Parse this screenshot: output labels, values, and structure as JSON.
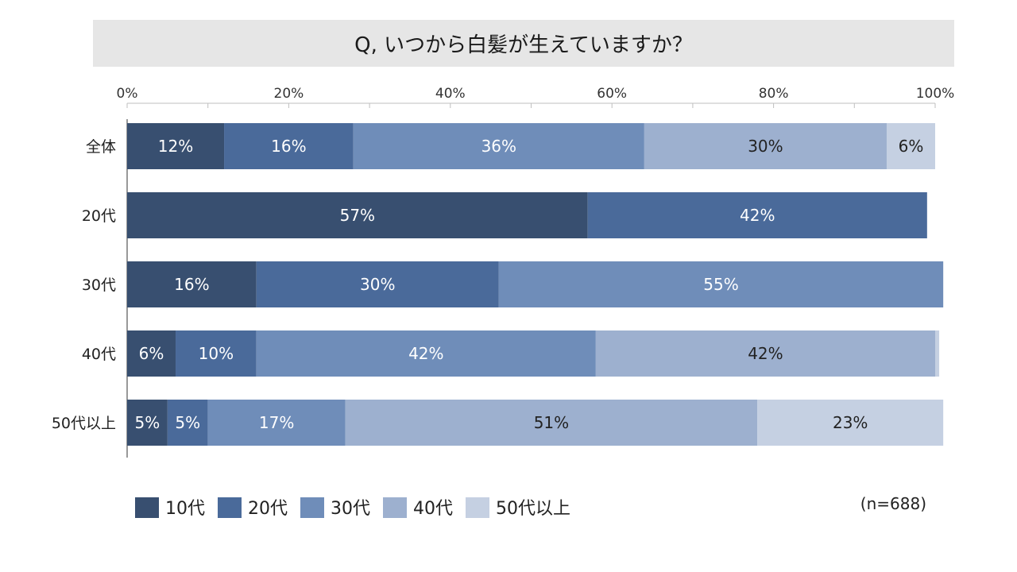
{
  "chart_data": {
    "type": "bar",
    "orientation": "horizontal-stacked-100",
    "title": "Q, いつから白髪が生えていますか？",
    "categories": [
      "全体",
      "20代",
      "30代",
      "40代",
      "50代以上"
    ],
    "x_ticks": [
      "0%",
      "20%",
      "40%",
      "60%",
      "80%",
      "100%"
    ],
    "xlim": [
      0,
      100
    ],
    "series": [
      {
        "name": "10代",
        "color": "#384f70",
        "label_color": "#ffffff",
        "values": [
          12,
          57,
          16,
          6,
          5
        ],
        "labels": [
          "12%",
          "57%",
          "16%",
          "6%",
          "5%"
        ]
      },
      {
        "name": "20代",
        "color": "#4a6a9a",
        "label_color": "#ffffff",
        "values": [
          16,
          42,
          30,
          10,
          5
        ],
        "labels": [
          "16%",
          "42%",
          "30%",
          "10%",
          "5%"
        ]
      },
      {
        "name": "30代",
        "color": "#6f8db9",
        "label_color": "#ffffff",
        "values": [
          36,
          0,
          55,
          42,
          17
        ],
        "labels": [
          "36%",
          "",
          "55%",
          "42%",
          "17%"
        ]
      },
      {
        "name": "40代",
        "color": "#9db0cf",
        "label_color": "#222222",
        "values": [
          30,
          0,
          0,
          42,
          51
        ],
        "labels": [
          "30%",
          "",
          "",
          "42%",
          "51%"
        ]
      },
      {
        "name": "50代以上",
        "color": "#c5d0e2",
        "label_color": "#222222",
        "values": [
          6,
          0,
          0,
          0.5,
          23
        ],
        "labels": [
          "6%",
          "",
          "",
          "",
          "23%"
        ]
      }
    ],
    "legend_position": "bottom-left",
    "note": "(n=688)"
  }
}
